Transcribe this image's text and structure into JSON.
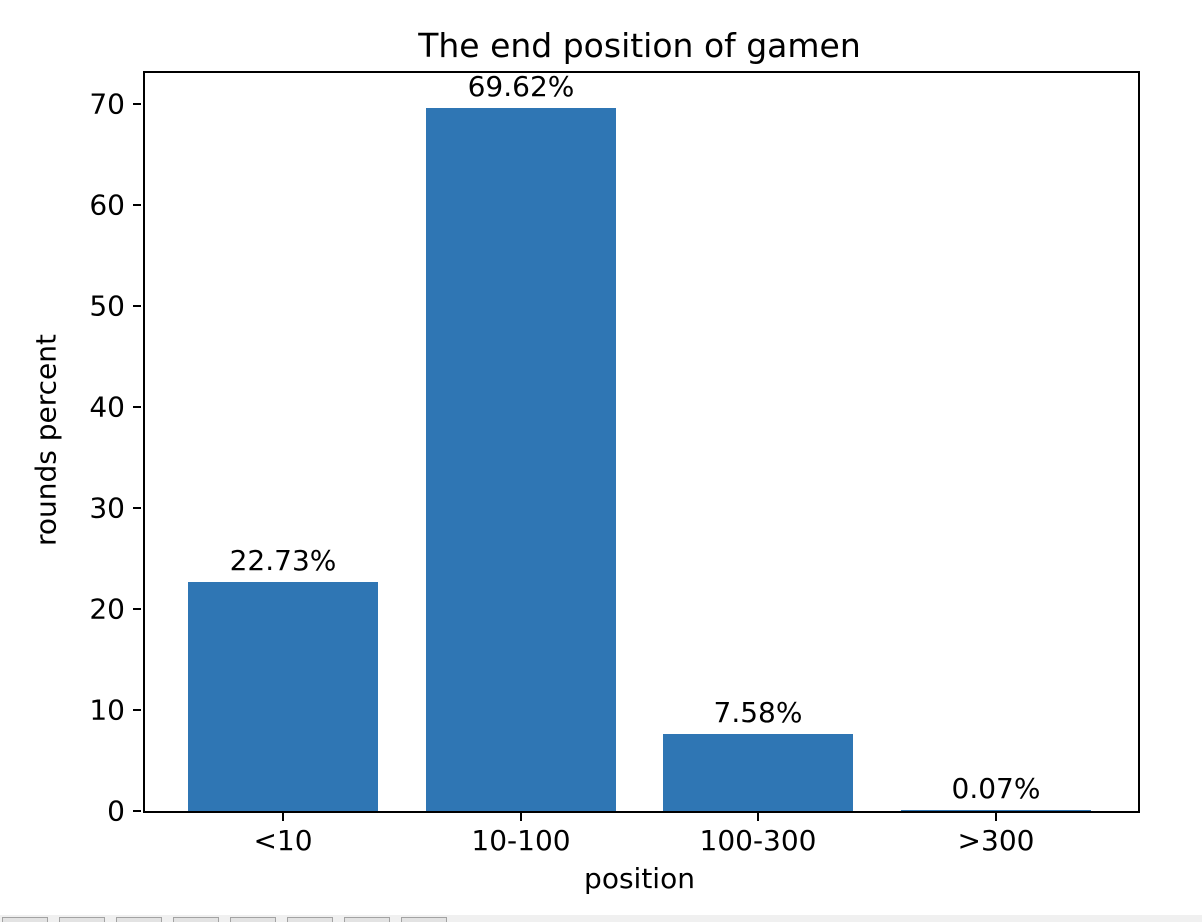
{
  "figure": {
    "title": "The end position of gamen",
    "xlabel": "position",
    "ylabel": "rounds percent"
  },
  "chart_data": {
    "type": "bar",
    "title": "The end position of gamen",
    "xlabel": "position",
    "ylabel": "rounds percent",
    "categories": [
      "<10",
      "10-100",
      "100-300",
      ">300"
    ],
    "values": [
      22.73,
      69.62,
      7.58,
      0.07
    ],
    "bar_labels": [
      "22.73%",
      "69.62%",
      "7.58%",
      "0.07%"
    ],
    "yticks": [
      0,
      10,
      20,
      30,
      40,
      50,
      60,
      70
    ],
    "ylim": [
      0,
      73.1
    ],
    "xlim": [
      -0.59,
      3.59
    ],
    "bar_width_fraction": 0.8,
    "grid": false,
    "legend_position": "none",
    "bar_color": "#2f76b4",
    "spine_color": "#000000",
    "background_color": "#ffffff"
  },
  "toolbar_strip": {
    "visible_button_tops": 8,
    "background": "#f0f0f0",
    "button_fill": "#e3e3e3",
    "button_border": "#a3a3a3"
  }
}
